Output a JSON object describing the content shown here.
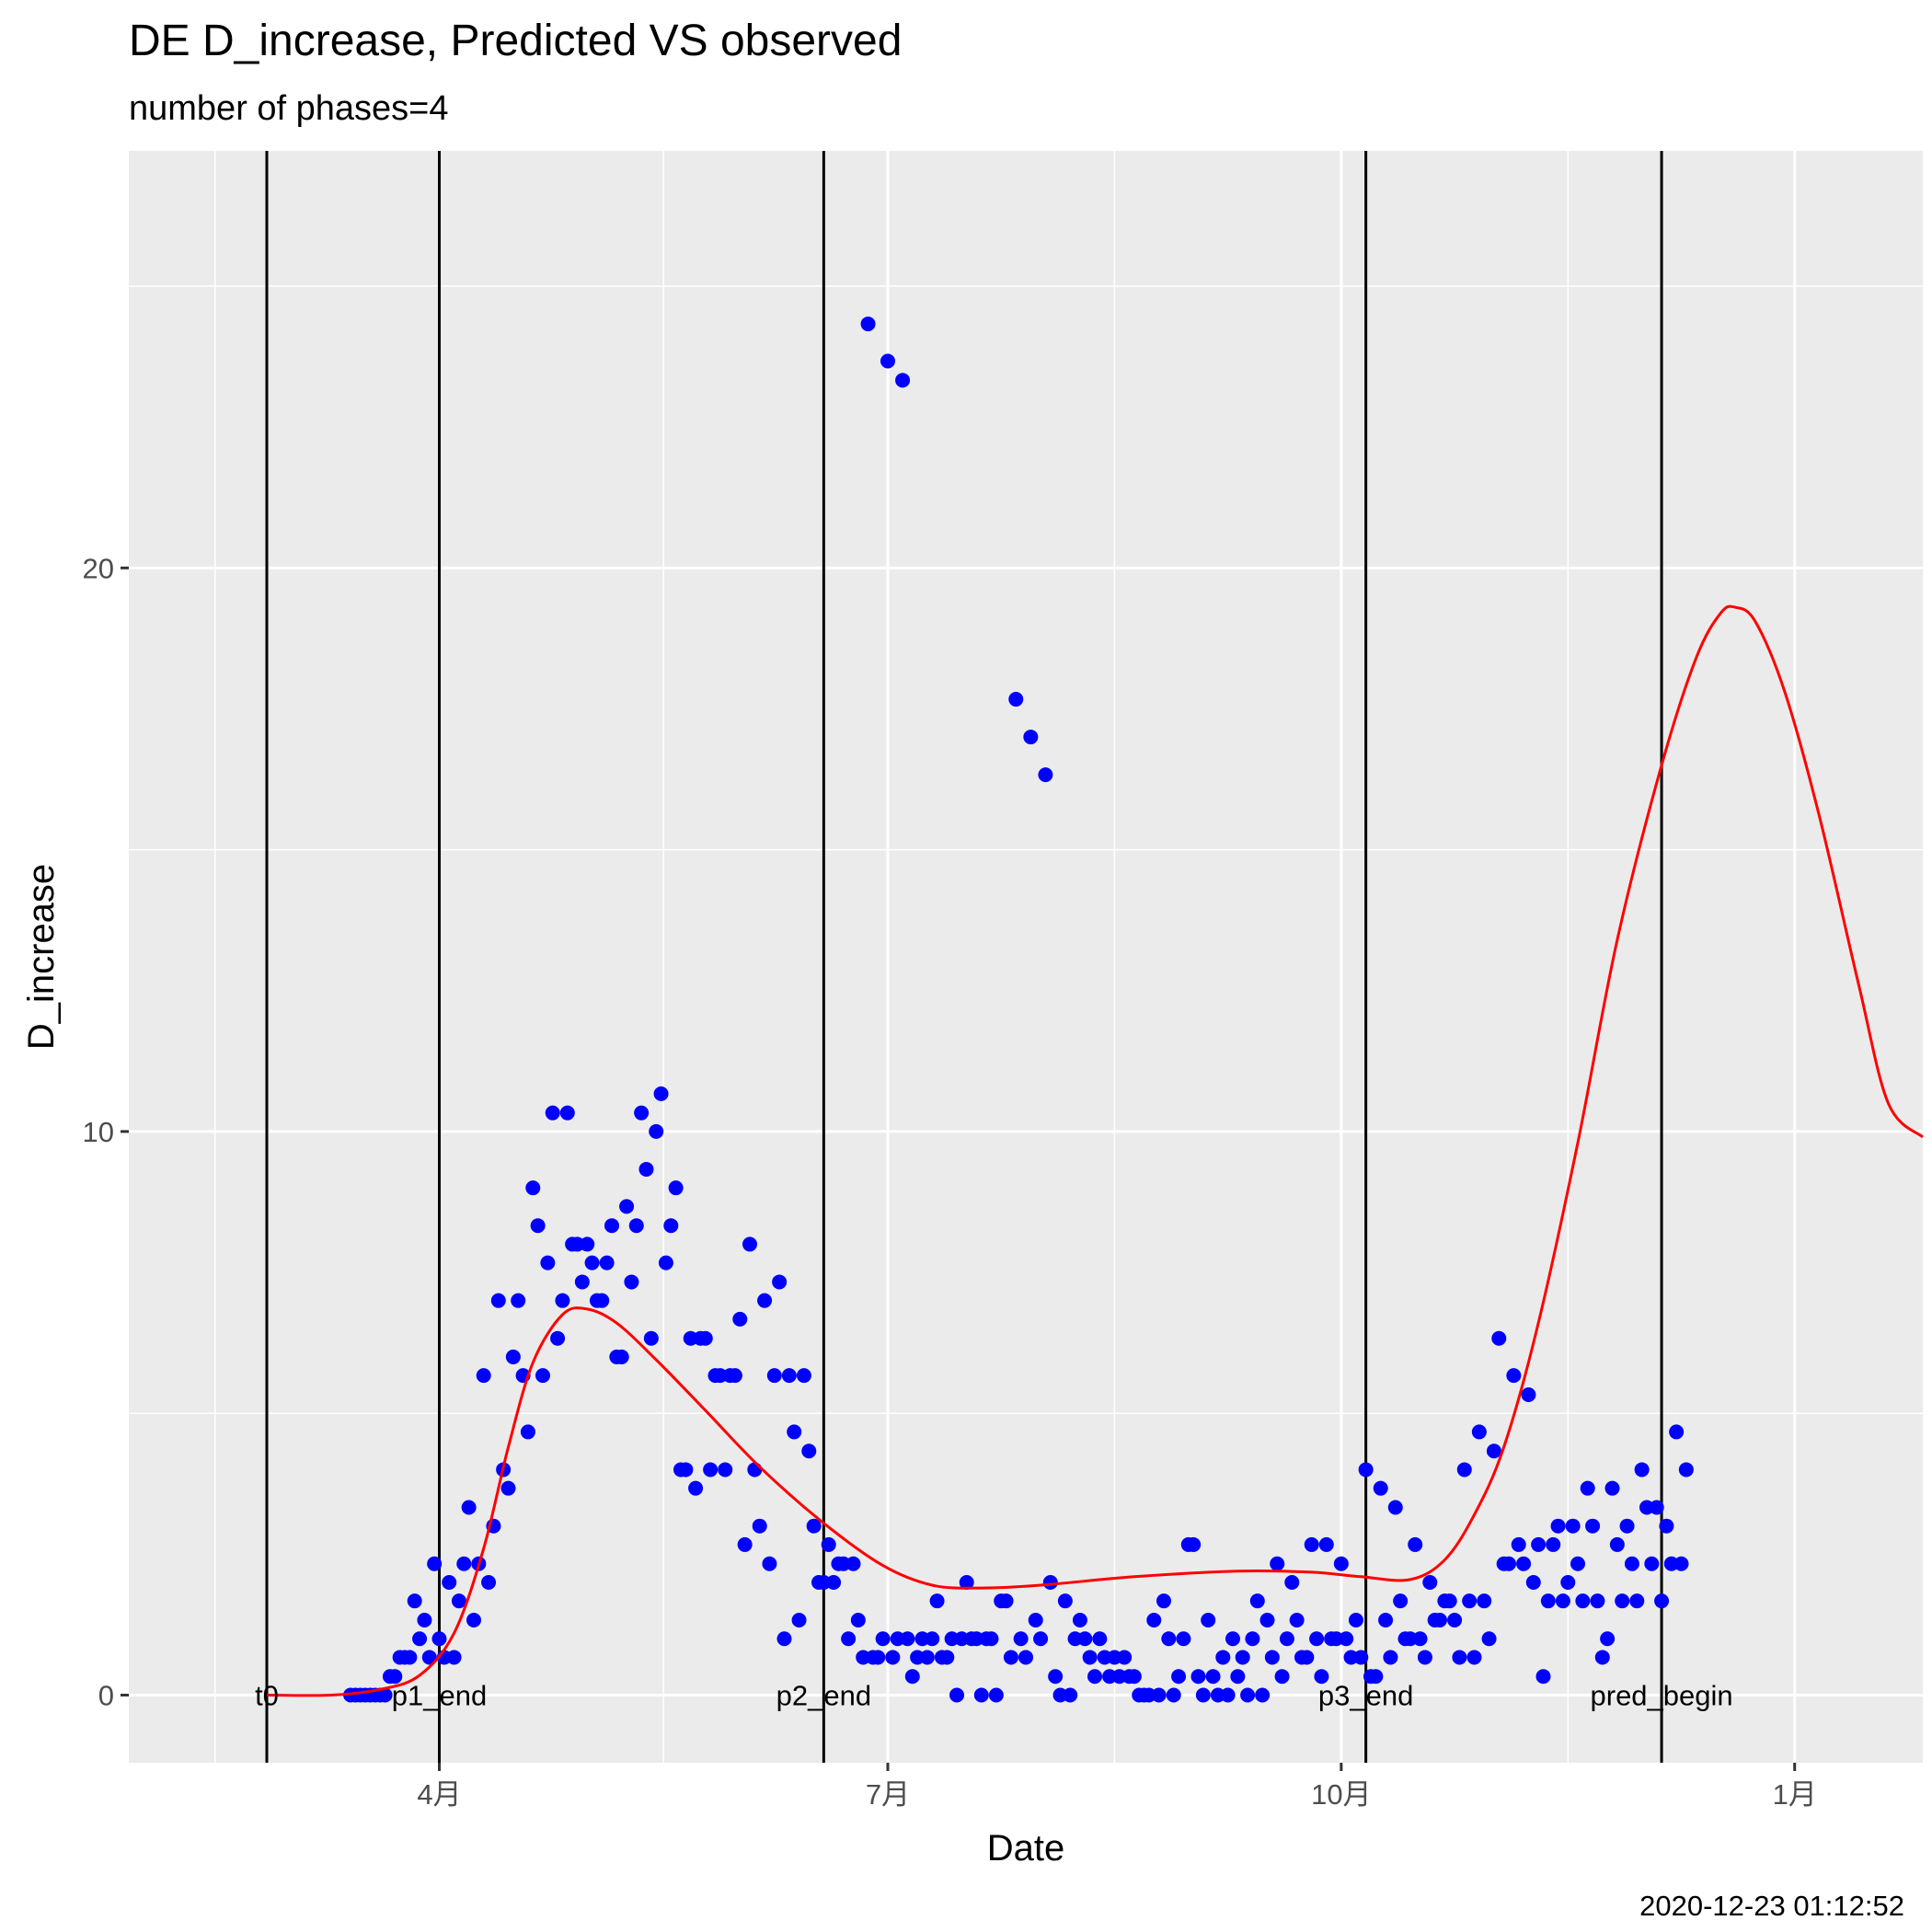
{
  "chart_data": {
    "type": "scatter",
    "title": "DE D_increase, Predicted VS observed",
    "subtitle": "number of phases=4",
    "xlabel": "Date",
    "ylabel": "D_increase",
    "caption": "2020-12-23 01:12:52",
    "xlim": [
      "2020-01-29",
      "2021-01-27"
    ],
    "ylim": [
      -1.2,
      27.4
    ],
    "x_ticks": [
      {
        "date": "2020-04-01",
        "label": "4月"
      },
      {
        "date": "2020-07-01",
        "label": "7月"
      },
      {
        "date": "2020-10-01",
        "label": "10月"
      },
      {
        "date": "2021-01-01",
        "label": "1月"
      }
    ],
    "y_ticks": [
      {
        "value": 0,
        "label": "0"
      },
      {
        "value": 10,
        "label": "10"
      },
      {
        "value": 20,
        "label": "20"
      }
    ],
    "grid": true,
    "colors": {
      "panel_bg": "#ebebeb",
      "grid": "#ffffff",
      "observed": "#0000ff",
      "predicted": "#ff0000",
      "vlines": "#000000"
    },
    "vlines": [
      {
        "date": "2020-02-26",
        "label": "t0"
      },
      {
        "date": "2020-04-01",
        "label": "p1_end"
      },
      {
        "date": "2020-06-18",
        "label": "p2_end"
      },
      {
        "date": "2020-10-06",
        "label": "p3_end"
      },
      {
        "date": "2020-12-05",
        "label": "pred_begin"
      }
    ],
    "observed": {
      "start_date": "2020-03-14",
      "values": [
        0,
        0,
        0,
        0,
        0,
        0,
        0,
        0,
        0.33,
        0.33,
        0.67,
        0.67,
        0.67,
        1.67,
        1,
        1.33,
        0.67,
        2.33,
        1,
        0.67,
        2,
        0.67,
        1.67,
        2.33,
        3.33,
        1.33,
        2.33,
        5.67,
        2,
        3,
        7,
        4,
        3.67,
        6,
        7,
        5.67,
        4.67,
        9,
        8.33,
        5.67,
        7.67,
        10.33,
        6.33,
        7,
        10.33,
        8,
        8,
        7.33,
        8,
        7.67,
        7,
        7,
        7.67,
        8.33,
        6,
        6,
        8.67,
        7.33,
        8.33,
        10.33,
        9.33,
        6.33,
        10,
        10.67,
        7.67,
        8.33,
        9,
        4,
        4,
        6.33,
        3.67,
        6.33,
        6.33,
        4,
        5.67,
        5.67,
        4,
        5.67,
        5.67,
        6.67,
        2.67,
        8,
        4,
        3,
        7,
        2.33,
        5.67,
        7.33,
        1,
        5.67,
        4.67,
        1.33,
        5.67,
        4.33,
        3,
        2,
        2,
        2.67,
        2,
        2.33,
        2.33,
        1,
        2.33,
        1.33,
        0.67,
        24.33,
        0.67,
        0.67,
        1,
        23.67,
        0.67,
        1,
        23.33,
        1,
        0.33,
        0.67,
        1,
        0.67,
        1,
        1.67,
        0.67,
        0.67,
        1,
        0,
        1,
        2,
        1,
        1,
        0,
        1,
        1,
        0,
        1.67,
        1.67,
        0.67,
        17.67,
        1,
        0.67,
        17,
        1.33,
        1,
        16.33,
        2,
        0.33,
        0,
        1.67,
        0,
        1,
        1.33,
        1,
        0.67,
        0.33,
        1,
        0.67,
        0.33,
        0.67,
        0.33,
        0.67,
        0.33,
        0.33,
        0,
        0,
        0,
        1.33,
        0,
        1.67,
        1,
        0,
        0.33,
        1,
        2.67,
        2.67,
        0.33,
        0,
        1.33,
        0.33,
        0,
        0.67,
        0,
        1,
        0.33,
        0.67,
        0,
        1,
        1.67,
        0,
        1.33,
        0.67,
        2.33,
        0.33,
        1,
        2,
        1.33,
        0.67,
        0.67,
        2.67,
        1,
        0.33,
        2.67,
        1,
        1,
        2.33,
        1,
        0.67,
        1.33,
        0.67,
        4,
        0.33,
        0.33,
        3.67,
        1.33,
        0.67,
        3.33,
        1.67,
        1,
        1,
        2.67,
        1,
        0.67,
        2,
        1.33,
        1.33,
        1.67,
        1.67,
        1.33,
        0.67,
        4,
        1.67,
        0.67,
        4.67,
        1.67,
        1,
        4.33,
        6.33,
        2.33,
        2.33,
        5.67,
        2.67,
        2.33,
        5.33,
        2,
        2.67,
        0.33,
        1.67,
        2.67,
        3,
        1.67,
        2,
        3,
        2.33,
        1.67,
        3.67,
        3,
        1.67,
        0.67,
        1,
        3.67,
        2.67,
        1.67,
        3,
        2.33,
        1.67,
        4,
        3.33,
        2.33,
        3.33,
        1.67,
        3,
        2.33,
        4.67,
        2.33,
        4
      ]
    },
    "predicted": {
      "points": [
        {
          "date": "2020-02-26",
          "value": 0
        },
        {
          "date": "2020-03-10",
          "value": 0
        },
        {
          "date": "2020-03-20",
          "value": 0.1
        },
        {
          "date": "2020-03-28",
          "value": 0.35
        },
        {
          "date": "2020-04-04",
          "value": 1.1
        },
        {
          "date": "2020-04-10",
          "value": 2.6
        },
        {
          "date": "2020-04-15",
          "value": 4.4
        },
        {
          "date": "2020-04-20",
          "value": 5.9
        },
        {
          "date": "2020-04-26",
          "value": 6.75
        },
        {
          "date": "2020-05-01",
          "value": 6.85
        },
        {
          "date": "2020-05-07",
          "value": 6.6
        },
        {
          "date": "2020-05-15",
          "value": 5.95
        },
        {
          "date": "2020-05-25",
          "value": 5.05
        },
        {
          "date": "2020-06-05",
          "value": 4.05
        },
        {
          "date": "2020-06-18",
          "value": 3.05
        },
        {
          "date": "2020-06-30",
          "value": 2.3
        },
        {
          "date": "2020-07-10",
          "value": 1.95
        },
        {
          "date": "2020-07-20",
          "value": 1.9
        },
        {
          "date": "2020-08-01",
          "value": 1.95
        },
        {
          "date": "2020-08-20",
          "value": 2.1
        },
        {
          "date": "2020-09-10",
          "value": 2.2
        },
        {
          "date": "2020-09-25",
          "value": 2.18
        },
        {
          "date": "2020-10-05",
          "value": 2.1
        },
        {
          "date": "2020-10-15",
          "value": 2.05
        },
        {
          "date": "2020-10-22",
          "value": 2.4
        },
        {
          "date": "2020-10-28",
          "value": 3.2
        },
        {
          "date": "2020-11-03",
          "value": 4.4
        },
        {
          "date": "2020-11-10",
          "value": 6.6
        },
        {
          "date": "2020-11-18",
          "value": 9.8
        },
        {
          "date": "2020-11-26",
          "value": 13.4
        },
        {
          "date": "2020-12-05",
          "value": 16.5
        },
        {
          "date": "2020-12-12",
          "value": 18.4
        },
        {
          "date": "2020-12-17",
          "value": 19.2
        },
        {
          "date": "2020-12-20",
          "value": 19.3
        },
        {
          "date": "2020-12-24",
          "value": 19.05
        },
        {
          "date": "2020-12-30",
          "value": 17.8
        },
        {
          "date": "2021-01-06",
          "value": 15.6
        },
        {
          "date": "2021-01-14",
          "value": 12.6
        },
        {
          "date": "2021-01-20",
          "value": 10.5
        },
        {
          "date": "2021-01-27",
          "value": 9.9
        }
      ]
    }
  }
}
